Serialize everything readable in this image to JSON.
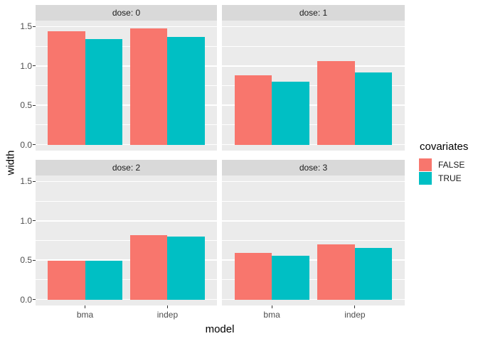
{
  "chart_data": {
    "type": "bar",
    "title": "",
    "xlabel": "model",
    "ylabel": "width",
    "categories": [
      "bma",
      "indep"
    ],
    "y_ticks": [
      0.0,
      0.5,
      1.0,
      1.5
    ],
    "y_tick_labels": [
      "0.0",
      "0.5",
      "1.0",
      "1.5"
    ],
    "y_minor_ticks": [
      0.25,
      0.75,
      1.25
    ],
    "ylim": [
      0,
      1.5
    ],
    "grid": true,
    "facet_variable": "dose",
    "legend": {
      "title": "covariates",
      "position": "right",
      "entries": [
        {
          "label": "FALSE",
          "color": "#F8766D"
        },
        {
          "label": "TRUE",
          "color": "#00BFC4"
        }
      ]
    },
    "facets": [
      {
        "label": "dose: 0",
        "series": [
          {
            "name": "FALSE",
            "values": [
              1.44,
              1.48
            ]
          },
          {
            "name": "TRUE",
            "values": [
              1.34,
              1.37
            ]
          }
        ]
      },
      {
        "label": "dose: 1",
        "series": [
          {
            "name": "FALSE",
            "values": [
              0.88,
              1.06
            ]
          },
          {
            "name": "TRUE",
            "values": [
              0.8,
              0.92
            ]
          }
        ]
      },
      {
        "label": "dose: 2",
        "series": [
          {
            "name": "FALSE",
            "values": [
              0.49,
              0.82
            ]
          },
          {
            "name": "TRUE",
            "values": [
              0.49,
              0.8
            ]
          }
        ]
      },
      {
        "label": "dose: 3",
        "series": [
          {
            "name": "FALSE",
            "values": [
              0.59,
              0.7
            ]
          },
          {
            "name": "TRUE",
            "values": [
              0.56,
              0.66
            ]
          }
        ]
      }
    ]
  },
  "theme": {
    "figure_background": "#FFFFFF",
    "panel_background": "#EBEBEB",
    "strip_background": "#D9D9D9",
    "strip_text_color": "#1A1A1A",
    "grid_color": "#FFFFFF",
    "axis_text_color": "#4D4D4D",
    "axis_tick_color": "#333333",
    "title_text_color": "#000000"
  }
}
